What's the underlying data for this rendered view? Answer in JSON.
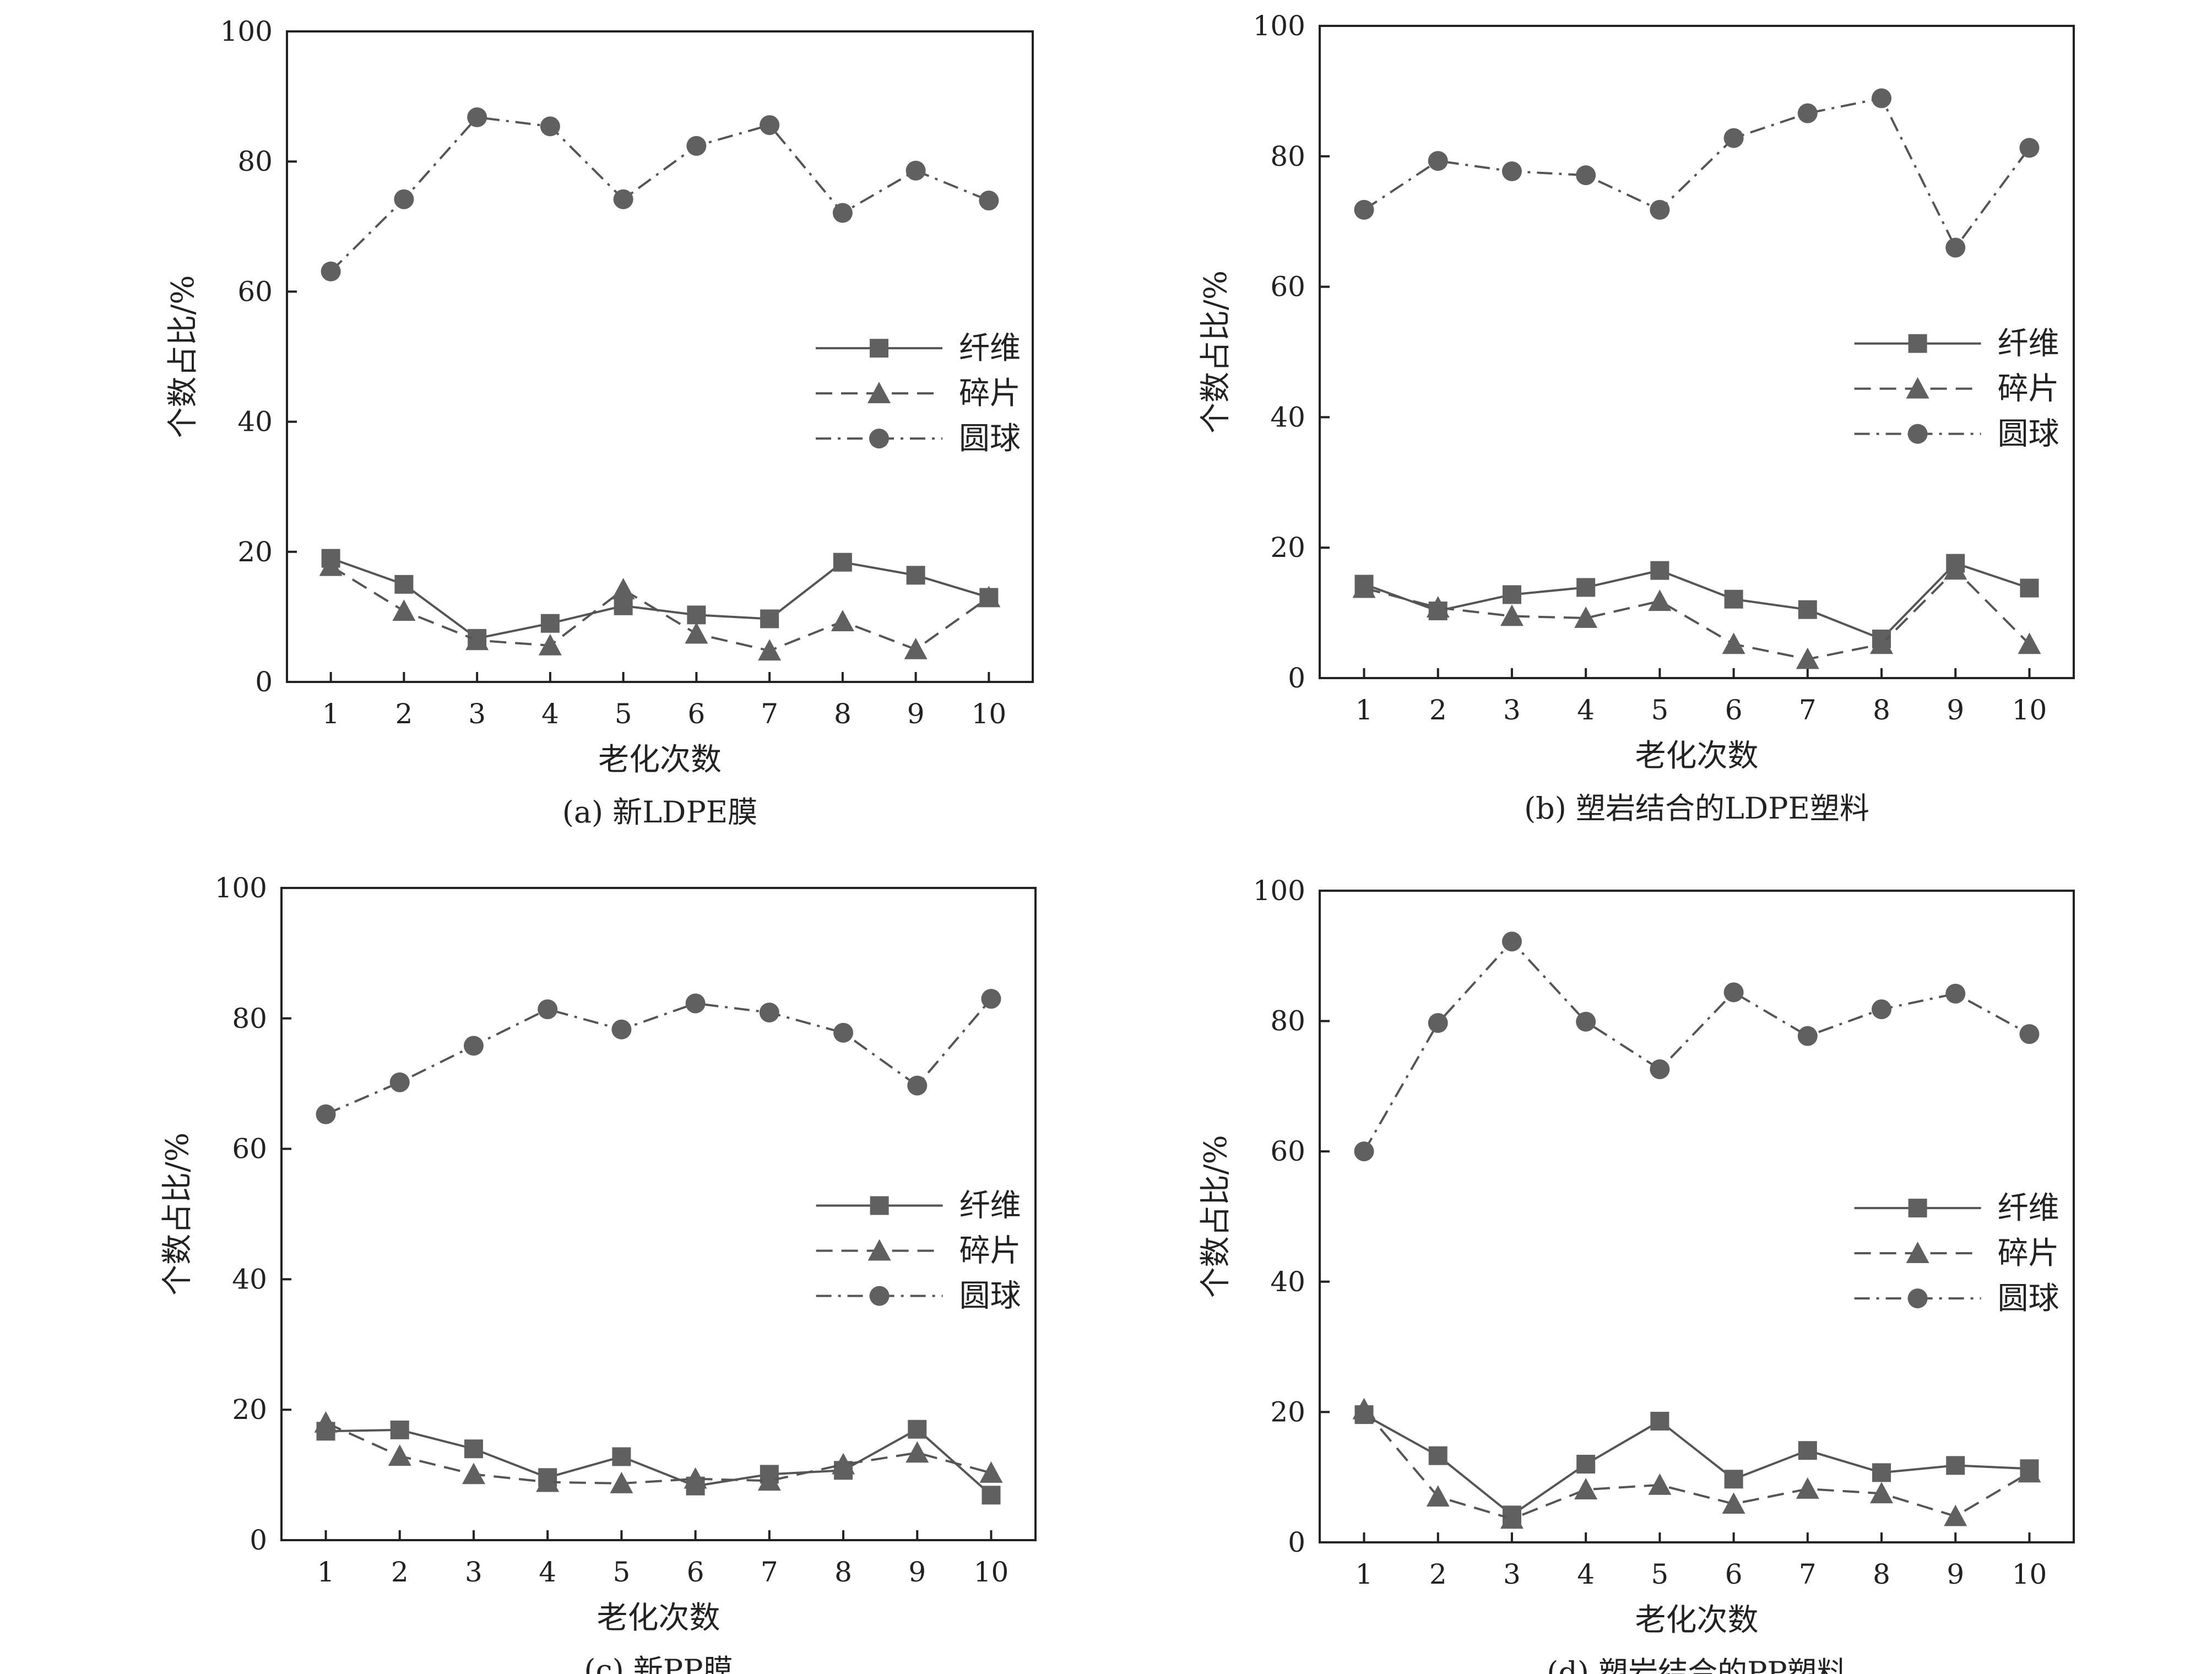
{
  "chart_data": [
    {
      "type": "line",
      "caption": "(a) 新LDPE膜",
      "xlabel": "老化次数",
      "ylabel": "个数占比/%",
      "x": [
        1,
        2,
        3,
        4,
        5,
        6,
        7,
        8,
        9,
        10
      ],
      "xlim": [
        0.4,
        10.6
      ],
      "ylim": [
        0,
        100
      ],
      "yticks": [
        0,
        20,
        40,
        60,
        80,
        100
      ],
      "grid": false,
      "legend_position": "center-right",
      "series": [
        {
          "name": "纤维",
          "marker": "square",
          "dash": "solid",
          "values": [
            19,
            15,
            6.7,
            9,
            11.7,
            10.3,
            9.7,
            18.4,
            16.4,
            13
          ]
        },
        {
          "name": "碎片",
          "marker": "triangle",
          "dash": "dashed",
          "values": [
            17.8,
            10.9,
            6.4,
            5.6,
            14.2,
            7.4,
            4.8,
            9.3,
            5,
            13
          ]
        },
        {
          "name": "圆球",
          "marker": "circle",
          "dash": "dashdot",
          "values": [
            63.1,
            74.2,
            86.8,
            85.4,
            74.2,
            82.4,
            85.6,
            72.1,
            78.6,
            74
          ]
        }
      ]
    },
    {
      "type": "line",
      "caption": "(b) 塑岩结合的LDPE塑料",
      "xlabel": "老化次数",
      "ylabel": "个数占比/%",
      "x": [
        1,
        2,
        3,
        4,
        5,
        6,
        7,
        8,
        9,
        10
      ],
      "xlim": [
        0.4,
        10.6
      ],
      "ylim": [
        0,
        100
      ],
      "yticks": [
        0,
        20,
        40,
        60,
        80,
        100
      ],
      "grid": false,
      "legend_position": "center-right",
      "series": [
        {
          "name": "纤维",
          "marker": "square",
          "dash": "solid",
          "values": [
            14.4,
            10.3,
            12.8,
            13.9,
            16.5,
            12.1,
            10.5,
            6,
            17.6,
            13.8
          ]
        },
        {
          "name": "碎片",
          "marker": "triangle",
          "dash": "dashed",
          "values": [
            13.8,
            10.8,
            9.5,
            9.2,
            11.8,
            5.2,
            2.9,
            5.2,
            16.6,
            5.2
          ]
        },
        {
          "name": "圆球",
          "marker": "circle",
          "dash": "dashdot",
          "values": [
            71.8,
            79.3,
            77.7,
            77.1,
            71.8,
            82.8,
            86.6,
            88.9,
            66,
            81.3
          ]
        }
      ]
    },
    {
      "type": "line",
      "caption": "(c) 新PP膜",
      "xlabel": "老化次数",
      "ylabel": "个数占比/%",
      "x": [
        1,
        2,
        3,
        4,
        5,
        6,
        7,
        8,
        9,
        10
      ],
      "xlim": [
        0.4,
        10.6
      ],
      "ylim": [
        0,
        100
      ],
      "yticks": [
        0,
        20,
        40,
        60,
        80,
        100
      ],
      "grid": false,
      "legend_position": "center-right",
      "series": [
        {
          "name": "纤维",
          "marker": "square",
          "dash": "solid",
          "values": [
            16.7,
            16.9,
            14,
            9.6,
            12.8,
            8.3,
            10.1,
            10.7,
            17,
            6.9
          ]
        },
        {
          "name": "碎片",
          "marker": "triangle",
          "dash": "dashed",
          "values": [
            18,
            12.9,
            10.1,
            8.9,
            8.7,
            9.4,
            9.1,
            11.6,
            13.4,
            10.3
          ]
        },
        {
          "name": "圆球",
          "marker": "circle",
          "dash": "dashdot",
          "values": [
            65.3,
            70.2,
            75.8,
            81.4,
            78.3,
            82.3,
            80.9,
            77.8,
            69.7,
            83
          ]
        }
      ]
    },
    {
      "type": "line",
      "caption": "(d) 塑岩结合的PP塑料",
      "xlabel": "老化次数",
      "ylabel": "个数占比/%",
      "x": [
        1,
        2,
        3,
        4,
        5,
        6,
        7,
        8,
        9,
        10
      ],
      "xlim": [
        0.4,
        10.6
      ],
      "ylim": [
        0,
        100
      ],
      "yticks": [
        0,
        20,
        40,
        60,
        80,
        100
      ],
      "grid": false,
      "legend_position": "center-right",
      "series": [
        {
          "name": "纤维",
          "marker": "square",
          "dash": "solid",
          "values": [
            19.6,
            13.3,
            4.2,
            12,
            18.6,
            9.7,
            14.1,
            10.7,
            11.8,
            11.3
          ]
        },
        {
          "name": "碎片",
          "marker": "triangle",
          "dash": "dashed",
          "values": [
            20.4,
            7,
            3.6,
            8.1,
            8.8,
            5.9,
            8.2,
            7.5,
            4,
            10.7
          ]
        },
        {
          "name": "圆球",
          "marker": "circle",
          "dash": "dashdot",
          "values": [
            60,
            79.7,
            92.2,
            79.9,
            72.6,
            84.4,
            77.7,
            81.8,
            84.2,
            78
          ]
        }
      ]
    }
  ]
}
